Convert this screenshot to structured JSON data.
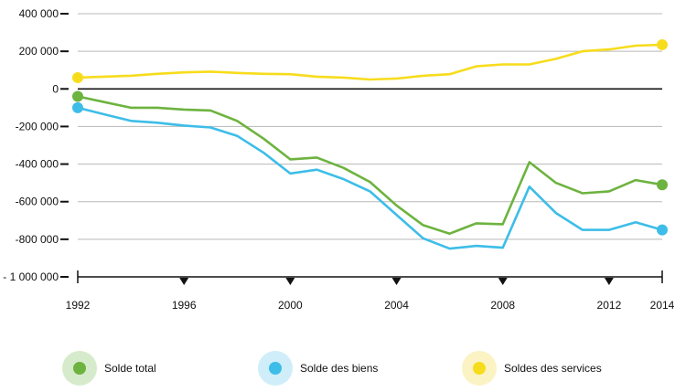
{
  "chart_data": {
    "type": "line",
    "x_ticks": [
      1992,
      1996,
      2000,
      2004,
      2008,
      2012,
      2014
    ],
    "y_ticks": [
      400000,
      200000,
      0,
      -200000,
      -400000,
      -600000,
      -800000,
      -1000000
    ],
    "y_tick_labels": [
      "400 000",
      "200 000",
      "0",
      "-200 000",
      "-400 000",
      "-600 000",
      "-800 000",
      "- 1 000 000"
    ],
    "x_tick_labels": [
      "1992",
      "1996",
      "2000",
      "2004",
      "2008",
      "2012",
      "2014"
    ],
    "ylim": [
      -1000000,
      400000
    ],
    "xlim": [
      1992,
      2014
    ],
    "grid": true,
    "legend_position": "bottom",
    "series": [
      {
        "name": "Solde total",
        "color": "#6db33f",
        "halo": "#d6ebcc",
        "x": [
          1992,
          1993,
          1994,
          1995,
          1996,
          1997,
          1998,
          1999,
          2000,
          2001,
          2002,
          2003,
          2004,
          2005,
          2006,
          2007,
          2008,
          2009,
          2010,
          2011,
          2012,
          2013,
          2014
        ],
        "values": [
          -40000,
          -70000,
          -100000,
          -100000,
          -110000,
          -115000,
          -170000,
          -265000,
          -375000,
          -365000,
          -420000,
          -495000,
          -620000,
          -725000,
          -770000,
          -715000,
          -720000,
          -390000,
          -500000,
          -555000,
          -545000,
          -485000,
          -510000
        ]
      },
      {
        "name": "Solde des biens",
        "color": "#3dbde8",
        "halo": "#cfeef9",
        "x": [
          1992,
          1993,
          1994,
          1995,
          1996,
          1997,
          1998,
          1999,
          2000,
          2001,
          2002,
          2003,
          2004,
          2005,
          2006,
          2007,
          2008,
          2009,
          2010,
          2011,
          2012,
          2013,
          2014
        ],
        "values": [
          -100000,
          -135000,
          -170000,
          -180000,
          -195000,
          -205000,
          -250000,
          -340000,
          -450000,
          -430000,
          -480000,
          -545000,
          -670000,
          -795000,
          -850000,
          -835000,
          -845000,
          -520000,
          -660000,
          -750000,
          -750000,
          -710000,
          -750000
        ]
      },
      {
        "name": "Soldes des services",
        "color": "#f7dc1c",
        "halo": "#fbf3c4",
        "x": [
          1992,
          1993,
          1994,
          1995,
          1996,
          1997,
          1998,
          1999,
          2000,
          2001,
          2002,
          2003,
          2004,
          2005,
          2006,
          2007,
          2008,
          2009,
          2010,
          2011,
          2012,
          2013,
          2014
        ],
        "values": [
          60000,
          65000,
          70000,
          80000,
          88000,
          92000,
          85000,
          80000,
          78000,
          65000,
          60000,
          50000,
          55000,
          70000,
          78000,
          120000,
          130000,
          130000,
          160000,
          200000,
          210000,
          230000,
          235000
        ]
      }
    ]
  }
}
